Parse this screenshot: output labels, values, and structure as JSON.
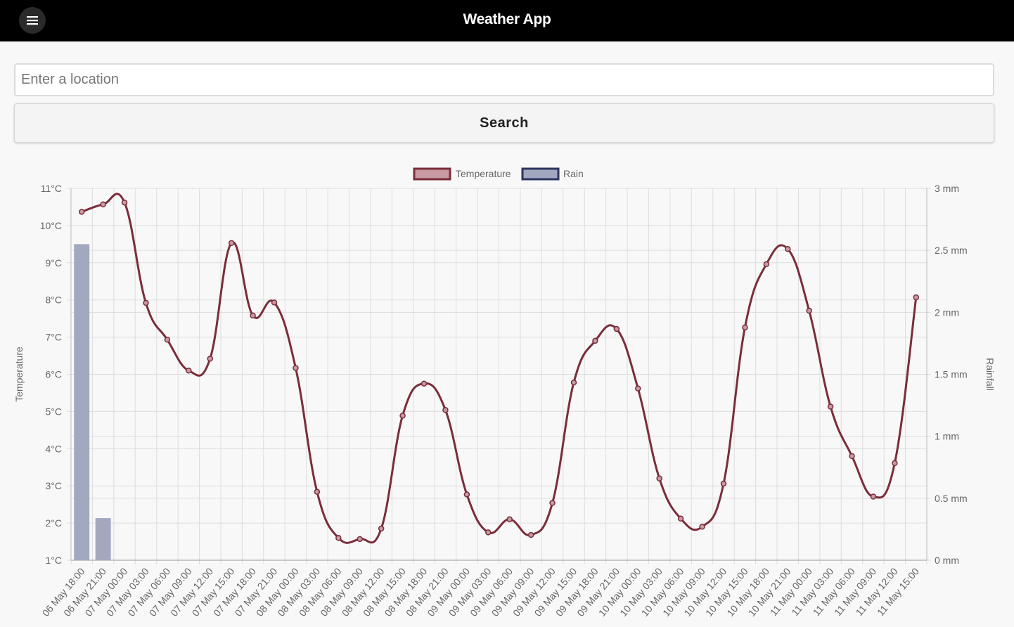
{
  "header": {
    "title": "Weather App",
    "menu_icon": "hamburger-menu-icon"
  },
  "search": {
    "placeholder": "Enter a location",
    "value": "",
    "button_label": "Search"
  },
  "colors": {
    "temperature_line": "#7a2d3a",
    "temperature_fill": "#c99aa2",
    "rain_bar": "#a2a8bf",
    "rain_border": "#2d3560",
    "topbar": "#000000",
    "grid": "#dddddd"
  },
  "chart_data": {
    "type": "line",
    "legend_position": "top",
    "grid": true,
    "categories": [
      "06 May 18:00",
      "06 May 21:00",
      "07 May 00:00",
      "07 May 03:00",
      "07 May 06:00",
      "07 May 09:00",
      "07 May 12:00",
      "07 May 15:00",
      "07 May 18:00",
      "07 May 21:00",
      "08 May 00:00",
      "08 May 03:00",
      "08 May 06:00",
      "08 May 09:00",
      "08 May 12:00",
      "08 May 15:00",
      "08 May 18:00",
      "08 May 21:00",
      "09 May 00:00",
      "09 May 03:00",
      "09 May 06:00",
      "09 May 09:00",
      "09 May 12:00",
      "09 May 15:00",
      "09 May 18:00",
      "09 May 21:00",
      "10 May 00:00",
      "10 May 03:00",
      "10 May 06:00",
      "10 May 09:00",
      "10 May 12:00",
      "10 May 15:00",
      "10 May 18:00",
      "10 May 21:00",
      "11 May 00:00",
      "11 May 03:00",
      "11 May 06:00",
      "11 May 09:00",
      "11 May 12:00",
      "11 May 15:00"
    ],
    "series": [
      {
        "name": "Temperature",
        "axis": "left",
        "type": "line",
        "values": [
          10.37,
          10.57,
          10.62,
          7.92,
          6.93,
          6.1,
          6.42,
          9.53,
          7.58,
          7.93,
          6.17,
          2.84,
          1.6,
          1.57,
          1.85,
          4.89,
          5.75,
          5.04,
          2.77,
          1.75,
          2.1,
          1.68,
          2.54,
          5.78,
          6.9,
          7.22,
          5.62,
          3.2,
          2.12,
          1.9,
          3.06,
          7.26,
          8.96,
          9.37,
          7.71,
          5.13,
          3.8,
          2.71,
          3.61,
          8.07
        ]
      },
      {
        "name": "Rain",
        "axis": "right",
        "type": "bar",
        "values": [
          2.55,
          0.34,
          0,
          0,
          0,
          0,
          0,
          0,
          0,
          0,
          0,
          0,
          0,
          0,
          0,
          0,
          0,
          0,
          0,
          0,
          0,
          0,
          0,
          0,
          0,
          0,
          0,
          0,
          0,
          0,
          0,
          0,
          0,
          0,
          0,
          0,
          0,
          0,
          0,
          0
        ]
      }
    ],
    "y_left": {
      "label": "Temperature",
      "range": [
        1,
        11
      ],
      "ticks": [
        "11°C",
        "10°C",
        "9°C",
        "8°C",
        "7°C",
        "6°C",
        "5°C",
        "4°C",
        "3°C",
        "2°C",
        "1°C"
      ]
    },
    "y_right": {
      "label": "Rainfall",
      "range": [
        0,
        3
      ],
      "ticks": [
        "3 mm",
        "2.5 mm",
        "2 mm",
        "1.5 mm",
        "1 mm",
        "0.5 mm",
        "0 mm"
      ]
    }
  }
}
